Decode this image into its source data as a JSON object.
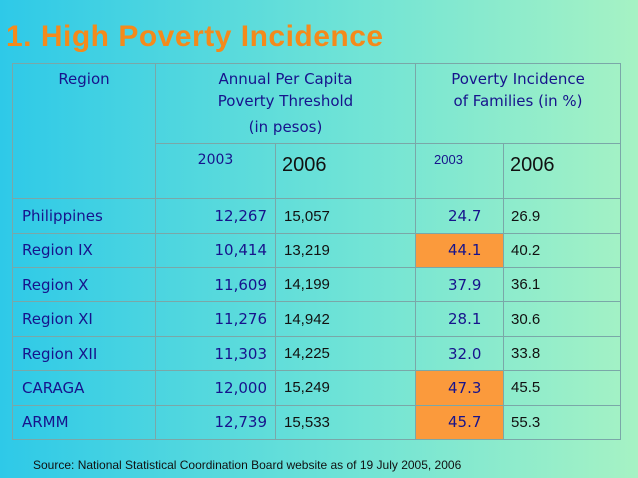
{
  "title": "1.  High Poverty Incidence",
  "header": {
    "region": "Region",
    "threshold_line1": "Annual Per Capita",
    "threshold_line2": "Poverty Threshold",
    "threshold_line3": "(in pesos)",
    "incidence_line1": "Poverty Incidence",
    "incidence_line2": "of Families (in %)",
    "y2003_a": "2003",
    "y2006_a": "2006",
    "y2003_b": "2003",
    "y2006_b": "2006"
  },
  "rows": [
    {
      "region": "Philippines",
      "t2003": "12,267",
      "t2006": "15,057",
      "i2003": "24.7",
      "i2006": "26.9",
      "highlight": false
    },
    {
      "region": "Region IX",
      "t2003": "10,414",
      "t2006": "13,219",
      "i2003": "44.1",
      "i2006": "40.2",
      "highlight": true
    },
    {
      "region": "Region X",
      "t2003": "11,609",
      "t2006": "14,199",
      "i2003": "37.9",
      "i2006": "36.1",
      "highlight": false
    },
    {
      "region": "Region XI",
      "t2003": "11,276",
      "t2006": "14,942",
      "i2003": "28.1",
      "i2006": "30.6",
      "highlight": false
    },
    {
      "region": "Region XII",
      "t2003": "11,303",
      "t2006": "14,225",
      "i2003": "32.0",
      "i2006": "33.8",
      "highlight": false
    },
    {
      "region": "CARAGA",
      "t2003": "12,000",
      "t2006": "15,249",
      "i2003": "47.3",
      "i2006": "45.5",
      "highlight": true
    },
    {
      "region": "ARMM",
      "t2003": "12,739",
      "t2006": "15,533",
      "i2003": "45.7",
      "i2006": "55.3",
      "highlight": true
    }
  ],
  "source": "Source:  National Statistical Coordination Board website as of 19 July 2005, 2006",
  "colors": {
    "title": "#f48a1b",
    "highlight": "#fb9a3c",
    "text": "#17138c"
  }
}
